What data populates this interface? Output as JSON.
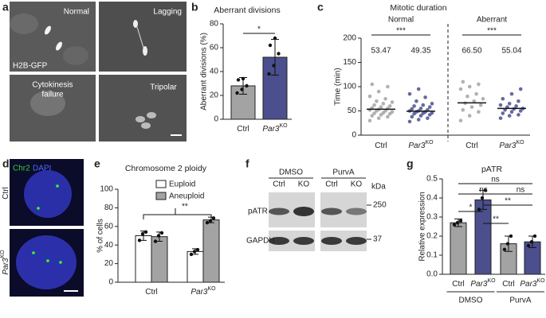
{
  "panel_labels": [
    "a",
    "b",
    "c",
    "d",
    "e",
    "f",
    "g"
  ],
  "image_a": {
    "normal": "Normal",
    "lagging": "Lagging",
    "stain": "H2B-GFP",
    "cytokinesis": [
      "Cytokinesis",
      "failure"
    ],
    "tripolar": "Tripolar"
  },
  "image_d": {
    "stain_chr2": "Chr2",
    "stain_dapi": "DAPI",
    "rows": [
      [
        "Ctrl"
      ],
      [
        "Par3",
        "KO"
      ]
    ]
  },
  "blot": {
    "treatments": [
      "DMSO",
      "PurvA"
    ],
    "lanes": [
      "Ctrl",
      "KO",
      "Ctrl",
      "KO"
    ],
    "proteins": [
      "pATR",
      "GAPDH"
    ],
    "unit": "kDa",
    "markers": [
      250,
      37
    ]
  },
  "chart_data": [
    {
      "type": "bar",
      "title": "Aberrant divisions",
      "ylabel": "Aberrant divisions (%)",
      "categories": [
        [
          "Ctrl"
        ],
        [
          "Par3",
          "KO"
        ]
      ],
      "values": [
        28,
        52
      ],
      "errors": [
        7,
        15
      ],
      "colors": [
        "#a3a3a3",
        "#4b4f8e"
      ],
      "points": [
        [
          22,
          25,
          28,
          33,
          34
        ],
        [
          38,
          45,
          55,
          62,
          68
        ]
      ],
      "ylim": [
        0,
        80
      ],
      "yticks": [
        0,
        20,
        40,
        60,
        80
      ],
      "significance": [
        "*"
      ]
    },
    {
      "type": "scatter",
      "title": "Mitotic duration",
      "ylabel": "Time (min)",
      "groups": [
        "Normal",
        "Aberrant"
      ],
      "categories": [
        [
          "Ctrl"
        ],
        [
          "Par3",
          "KO"
        ],
        [
          "Ctrl"
        ],
        [
          "Par3",
          "KO"
        ]
      ],
      "colors": [
        "#a3a3a3",
        "#4b4f8e",
        "#a3a3a3",
        "#4b4f8e"
      ],
      "means": [
        53.47,
        49.35,
        66.5,
        55.04
      ],
      "mean_labels": [
        "53.47",
        "49.35",
        "66.50",
        "55.04"
      ],
      "points": [
        [
          30,
          35,
          38,
          40,
          42,
          44,
          45,
          46,
          48,
          50,
          50,
          52,
          53,
          55,
          56,
          58,
          60,
          62,
          65,
          68,
          70,
          75,
          80,
          90,
          100,
          105
        ],
        [
          28,
          32,
          35,
          38,
          40,
          42,
          44,
          45,
          46,
          48,
          48,
          50,
          50,
          52,
          54,
          55,
          58,
          60,
          62,
          65,
          70,
          78,
          85,
          95
        ],
        [
          30,
          40,
          48,
          52,
          58,
          62,
          66,
          70,
          75,
          80,
          85,
          95,
          100,
          105,
          110
        ],
        [
          35,
          40,
          42,
          45,
          48,
          50,
          52,
          54,
          55,
          58,
          60,
          62,
          65,
          70,
          75,
          85,
          95
        ]
      ],
      "ylim": [
        0,
        200
      ],
      "yticks": [
        0,
        50,
        100,
        150,
        200
      ],
      "significance": [
        "***",
        "***"
      ]
    },
    {
      "type": "grouped-bar",
      "title": "Chromosome 2 ploidy",
      "ylabel": "% of cells",
      "categories": [
        [
          "Ctrl"
        ],
        [
          "Par3",
          "KO"
        ]
      ],
      "series": [
        {
          "name": "Euploid",
          "color": "#ffffff",
          "values": [
            50,
            33
          ],
          "errors": [
            5,
            3
          ],
          "points": [
            [
              45,
              52,
              54
            ],
            [
              30,
              33,
              35
            ]
          ]
        },
        {
          "name": "Aneuploid",
          "color": "#a3a3a3",
          "values": [
            49,
            67
          ],
          "errors": [
            5,
            3
          ],
          "points": [
            [
              44,
              50,
              53
            ],
            [
              64,
              66,
              69
            ]
          ]
        }
      ],
      "ylim": [
        0,
        100
      ],
      "yticks": [
        0,
        20,
        40,
        60,
        80,
        100
      ],
      "significance": [
        "**"
      ]
    },
    {
      "type": "bar",
      "title": "pATR",
      "ylabel": "Relative expression",
      "groups": [
        "DMSO",
        "PurvA"
      ],
      "categories": [
        [
          "Ctrl"
        ],
        [
          "Par3",
          "KO"
        ],
        [
          "Ctrl"
        ],
        [
          "Par3",
          "KO"
        ]
      ],
      "values": [
        0.27,
        0.39,
        0.16,
        0.17
      ],
      "errors": [
        0.02,
        0.05,
        0.04,
        0.03
      ],
      "colors": [
        "#a3a3a3",
        "#4b4f8e",
        "#a3a3a3",
        "#4b4f8e"
      ],
      "points": [
        [
          0.26,
          0.27,
          0.28
        ],
        [
          0.34,
          0.4,
          0.44
        ],
        [
          0.13,
          0.16,
          0.2
        ],
        [
          0.15,
          0.17,
          0.2
        ]
      ],
      "ylim": [
        0,
        0.5
      ],
      "yticks": [
        {
          "value": 0,
          "label": "0.0"
        },
        {
          "value": 0.1,
          "label": "0.1"
        },
        {
          "value": 0.2,
          "label": "0.2"
        },
        {
          "value": 0.3,
          "label": "0.3"
        },
        {
          "value": 0.4,
          "label": "0.4"
        },
        {
          "value": 0.5,
          "label": "0.5"
        }
      ],
      "significance": [
        "ns",
        "ns",
        "ns",
        "*",
        "**",
        "**"
      ]
    }
  ]
}
